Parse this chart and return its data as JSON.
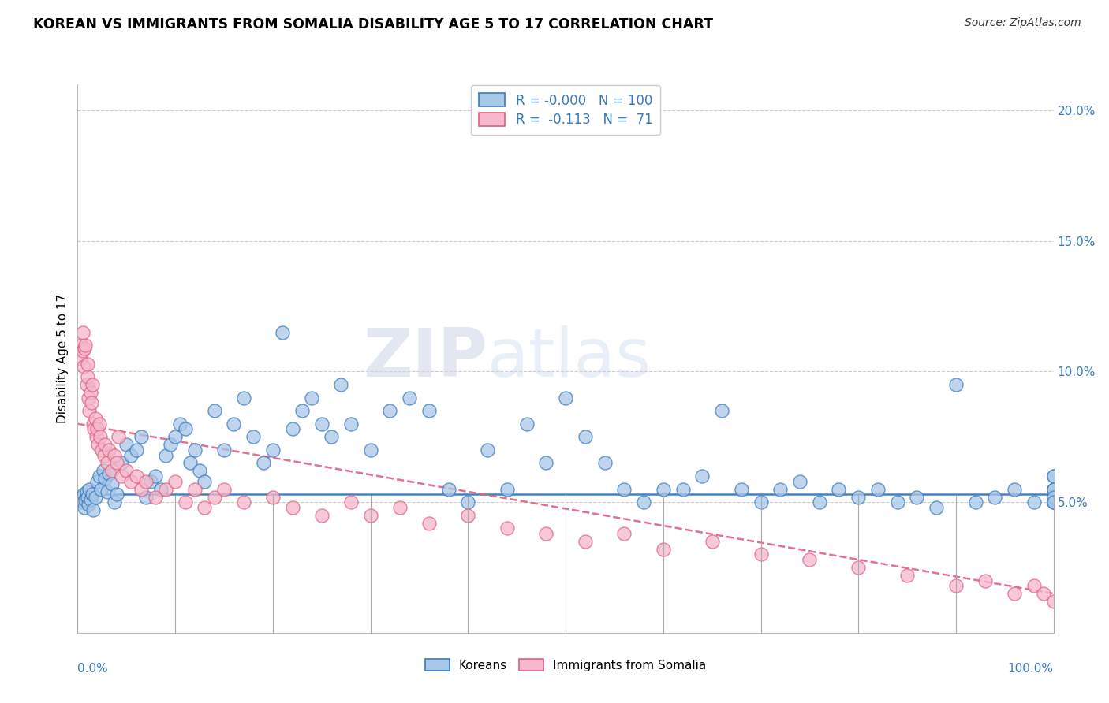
{
  "title": "KOREAN VS IMMIGRANTS FROM SOMALIA DISABILITY AGE 5 TO 17 CORRELATION CHART",
  "source": "Source: ZipAtlas.com",
  "ylabel": "Disability Age 5 to 17",
  "xlim": [
    0.0,
    100.0
  ],
  "ylim": [
    0.0,
    21.0
  ],
  "yticks": [
    5.0,
    10.0,
    15.0,
    20.0
  ],
  "ytick_labels": [
    "5.0%",
    "10.0%",
    "15.0%",
    "20.0%"
  ],
  "legend_label1": "Koreans",
  "legend_label2": "Immigrants from Somalia",
  "korean_color": "#a8c8e8",
  "somalia_color": "#f5b8cc",
  "trendline_korean_color": "#3a7abf",
  "trendline_somalia_color": "#e06080",
  "background_color": "#ffffff",
  "korean_x": [
    0.4,
    0.5,
    0.6,
    0.7,
    0.8,
    0.9,
    1.0,
    1.1,
    1.2,
    1.3,
    1.5,
    1.6,
    1.8,
    2.0,
    2.2,
    2.4,
    2.6,
    2.8,
    3.0,
    3.2,
    3.5,
    3.8,
    4.0,
    4.5,
    5.0,
    5.5,
    6.0,
    6.5,
    7.0,
    7.5,
    8.0,
    8.5,
    9.0,
    9.5,
    10.0,
    10.5,
    11.0,
    11.5,
    12.0,
    12.5,
    13.0,
    14.0,
    15.0,
    16.0,
    17.0,
    18.0,
    19.0,
    20.0,
    21.0,
    22.0,
    23.0,
    24.0,
    25.0,
    26.0,
    27.0,
    28.0,
    30.0,
    32.0,
    34.0,
    36.0,
    38.0,
    40.0,
    42.0,
    44.0,
    46.0,
    48.0,
    50.0,
    52.0,
    54.0,
    56.0,
    58.0,
    60.0,
    62.0,
    64.0,
    66.0,
    68.0,
    70.0,
    72.0,
    74.0,
    76.0,
    78.0,
    80.0,
    82.0,
    84.0,
    86.0,
    88.0,
    90.0,
    92.0,
    94.0,
    96.0,
    98.0,
    100.0,
    100.0,
    100.0,
    100.0,
    100.0,
    100.0,
    100.0,
    100.0,
    100.0
  ],
  "korean_y": [
    5.2,
    5.0,
    5.3,
    4.8,
    5.1,
    5.4,
    5.2,
    4.9,
    5.5,
    5.1,
    5.3,
    4.7,
    5.2,
    5.8,
    6.0,
    5.5,
    6.2,
    5.9,
    5.4,
    6.1,
    5.7,
    5.0,
    5.3,
    6.5,
    7.2,
    6.8,
    7.0,
    7.5,
    5.2,
    5.8,
    6.0,
    5.5,
    6.8,
    7.2,
    7.5,
    8.0,
    7.8,
    6.5,
    7.0,
    6.2,
    5.8,
    8.5,
    7.0,
    8.0,
    9.0,
    7.5,
    6.5,
    7.0,
    11.5,
    7.8,
    8.5,
    9.0,
    8.0,
    7.5,
    9.5,
    8.0,
    7.0,
    8.5,
    9.0,
    8.5,
    5.5,
    5.0,
    7.0,
    5.5,
    8.0,
    6.5,
    9.0,
    7.5,
    6.5,
    5.5,
    5.0,
    5.5,
    5.5,
    6.0,
    8.5,
    5.5,
    5.0,
    5.5,
    5.8,
    5.0,
    5.5,
    5.2,
    5.5,
    5.0,
    5.2,
    4.8,
    9.5,
    5.0,
    5.2,
    5.5,
    5.0,
    5.5,
    5.5,
    6.0,
    6.0,
    5.0,
    5.0,
    5.5,
    5.2,
    5.0
  ],
  "somalia_x": [
    0.3,
    0.4,
    0.5,
    0.5,
    0.6,
    0.7,
    0.8,
    0.9,
    1.0,
    1.0,
    1.1,
    1.2,
    1.3,
    1.4,
    1.5,
    1.6,
    1.7,
    1.8,
    1.9,
    2.0,
    2.1,
    2.2,
    2.3,
    2.5,
    2.7,
    2.8,
    3.0,
    3.2,
    3.5,
    3.8,
    4.0,
    4.2,
    4.5,
    5.0,
    5.5,
    6.0,
    6.5,
    7.0,
    8.0,
    9.0,
    10.0,
    11.0,
    12.0,
    13.0,
    14.0,
    15.0,
    17.0,
    20.0,
    22.0,
    25.0,
    28.0,
    30.0,
    33.0,
    36.0,
    40.0,
    44.0,
    48.0,
    52.0,
    56.0,
    60.0,
    65.0,
    70.0,
    75.0,
    80.0,
    85.0,
    90.0,
    93.0,
    96.0,
    98.0,
    99.0,
    100.0
  ],
  "somalia_y": [
    10.5,
    11.0,
    10.8,
    11.5,
    10.2,
    10.9,
    11.0,
    9.5,
    9.8,
    10.3,
    9.0,
    8.5,
    9.2,
    8.8,
    9.5,
    8.0,
    7.8,
    8.2,
    7.5,
    7.8,
    7.2,
    8.0,
    7.5,
    7.0,
    6.8,
    7.2,
    6.5,
    7.0,
    6.2,
    6.8,
    6.5,
    7.5,
    6.0,
    6.2,
    5.8,
    6.0,
    5.5,
    5.8,
    5.2,
    5.5,
    5.8,
    5.0,
    5.5,
    4.8,
    5.2,
    5.5,
    5.0,
    5.2,
    4.8,
    4.5,
    5.0,
    4.5,
    4.8,
    4.2,
    4.5,
    4.0,
    3.8,
    3.5,
    3.8,
    3.2,
    3.5,
    3.0,
    2.8,
    2.5,
    2.2,
    1.8,
    2.0,
    1.5,
    1.8,
    1.5,
    1.2
  ],
  "korean_trend_y0": 5.3,
  "korean_trend_y1": 5.3,
  "somalia_trend_x0": 0.0,
  "somalia_trend_y0": 8.0,
  "somalia_trend_x1": 100.0,
  "somalia_trend_y1": 1.5
}
